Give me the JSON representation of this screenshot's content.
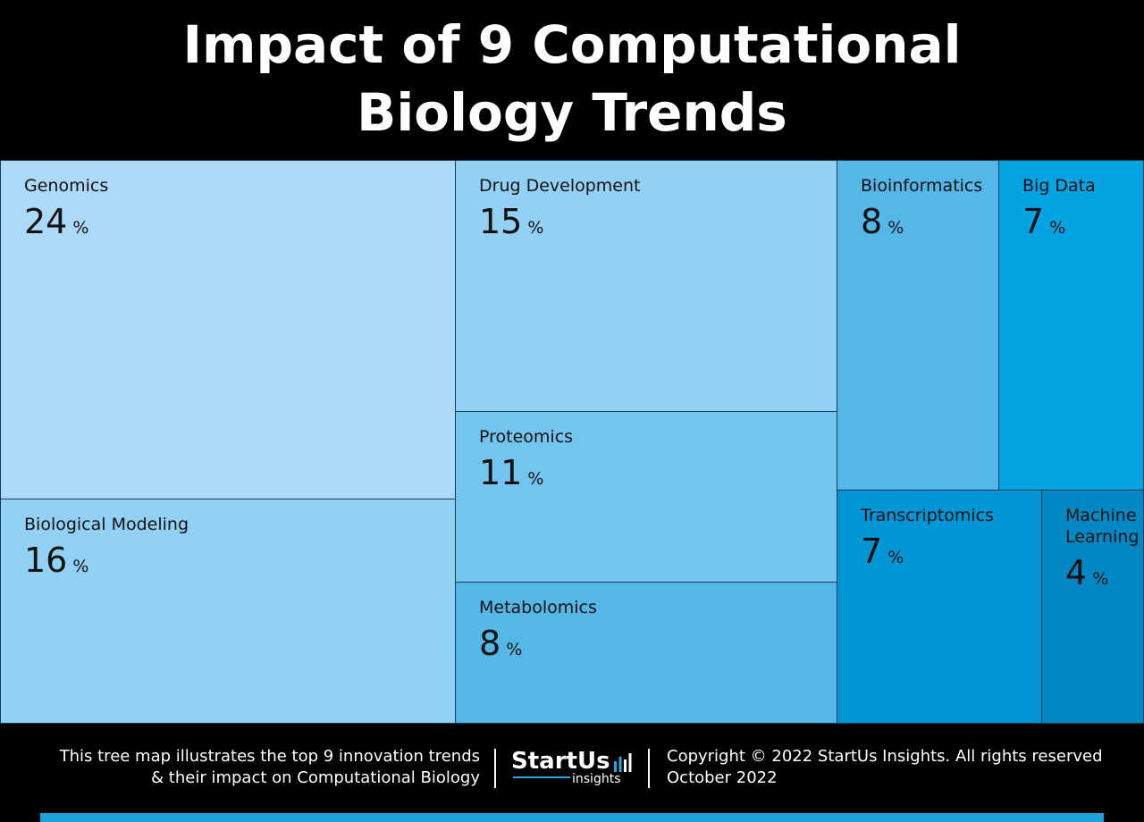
{
  "title_lines": [
    "Impact of 9 Computational",
    "Biology Trends"
  ],
  "chart_data": {
    "type": "treemap",
    "unit": "%",
    "items": [
      {
        "name": "Genomics",
        "value": 24,
        "color": "#acd9f7"
      },
      {
        "name": "Drug Development",
        "value": 15,
        "color": "#92d1f4"
      },
      {
        "name": "Bioinformatics",
        "value": 8,
        "color": "#55b7e8"
      },
      {
        "name": "Big Data",
        "value": 7,
        "color": "#06a3e3"
      },
      {
        "name": "Biological Modeling",
        "value": 16,
        "color": "#92d1f4"
      },
      {
        "name": "Proteomics",
        "value": 11,
        "color": "#73c5ef"
      },
      {
        "name": "Metabolomics",
        "value": 8,
        "color": "#55b7e8"
      },
      {
        "name": "Transcriptomics",
        "value": 7,
        "color": "#0096d6"
      },
      {
        "name": "Machine\nLearning",
        "value": 4,
        "color": "#0088c4"
      }
    ]
  },
  "footer": {
    "description_lines": [
      "This tree map illustrates the top 9 innovation trends",
      "& their impact on Computational Biology"
    ],
    "logo_word": "StartUs",
    "logo_sub": "insights",
    "copyright": "Copyright © 2022 StartUs Insights. All rights reserved",
    "date": "October 2022"
  },
  "colors": {
    "background": "#000000",
    "text": "#ffffff",
    "accent": "#2aa8e0",
    "bottom_bar": "#1aa3dd"
  }
}
